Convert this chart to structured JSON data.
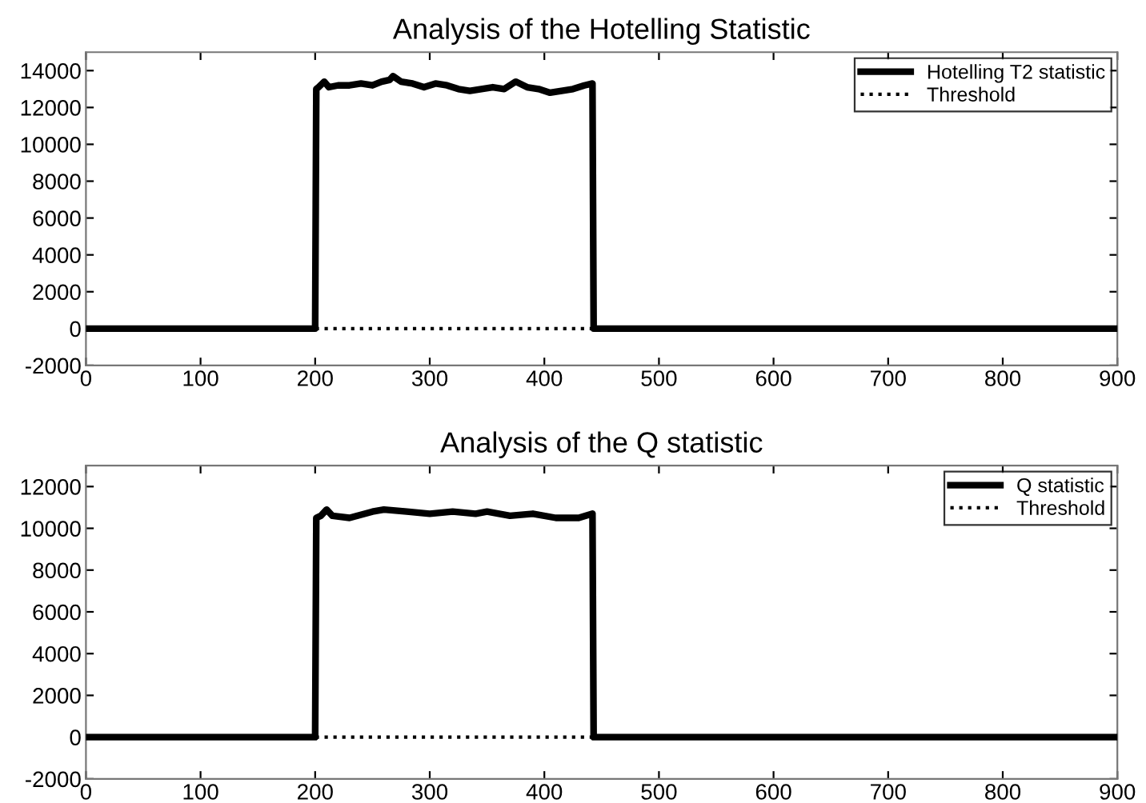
{
  "chart_data": [
    {
      "type": "line",
      "title": "Analysis of the Hotelling Statistic",
      "xlim": [
        0,
        900
      ],
      "xticks": [
        0,
        100,
        200,
        300,
        400,
        500,
        600,
        700,
        800,
        900
      ],
      "ylim": [
        -2000,
        15000
      ],
      "yticks": [
        14000,
        12000,
        10000,
        8000,
        6000,
        4000,
        2000,
        0,
        -2000
      ],
      "legend": "top right",
      "grid": false,
      "series": [
        {
          "name": "Hotelling T2 statistic",
          "color": "#000000",
          "line_style": "solid",
          "x": [
            0,
            100,
            200,
            201,
            203,
            208,
            212,
            220,
            230,
            240,
            250,
            258,
            265,
            268,
            275,
            285,
            295,
            305,
            315,
            325,
            335,
            345,
            355,
            365,
            375,
            385,
            395,
            405,
            415,
            425,
            435,
            442,
            443,
            500,
            600,
            700,
            800,
            900
          ],
          "values": [
            0,
            0,
            0,
            13000,
            13100,
            13400,
            13100,
            13200,
            13200,
            13300,
            13200,
            13400,
            13500,
            13700,
            13400,
            13300,
            13100,
            13300,
            13200,
            13000,
            12900,
            13000,
            13100,
            13000,
            13400,
            13100,
            13000,
            12800,
            12900,
            13000,
            13200,
            13300,
            0,
            0,
            0,
            0,
            0,
            0
          ]
        },
        {
          "name": "Threshold",
          "color": "#000000",
          "line_style": "dotted",
          "x": [
            0,
            900
          ],
          "values": [
            0,
            0
          ]
        }
      ]
    },
    {
      "type": "line",
      "title": "Analysis of the Q statistic",
      "xlim": [
        0,
        900
      ],
      "xticks": [
        0,
        100,
        200,
        300,
        400,
        500,
        600,
        700,
        800,
        900
      ],
      "ylim": [
        -2000,
        13000
      ],
      "yticks": [
        12000,
        10000,
        8000,
        6000,
        4000,
        2000,
        0,
        -2000
      ],
      "legend": "top right",
      "grid": false,
      "series": [
        {
          "name": "Q statistic",
          "color": "#000000",
          "line_style": "solid",
          "x": [
            0,
            100,
            200,
            201,
            205,
            210,
            215,
            230,
            250,
            260,
            280,
            300,
            320,
            340,
            350,
            370,
            390,
            410,
            430,
            442,
            443,
            500,
            600,
            700,
            800,
            900
          ],
          "values": [
            0,
            0,
            0,
            10500,
            10600,
            10900,
            10600,
            10500,
            10800,
            10900,
            10800,
            10700,
            10800,
            10700,
            10800,
            10600,
            10700,
            10500,
            10500,
            10700,
            0,
            0,
            0,
            0,
            0,
            0
          ]
        },
        {
          "name": "Threshold",
          "color": "#000000",
          "line_style": "dotted",
          "x": [
            0,
            900
          ],
          "values": [
            0,
            0
          ]
        }
      ]
    }
  ]
}
